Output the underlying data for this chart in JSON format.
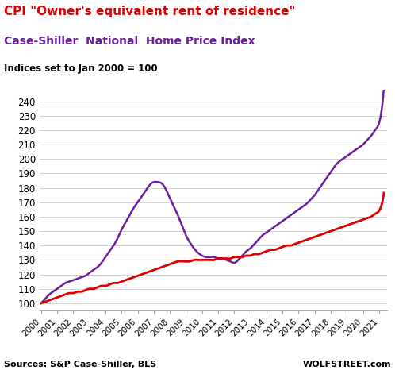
{
  "title_line1": "CPI \"Owner's equivalent rent of residence\"",
  "title_line2": "Case-Shiller  National  Home Price Index",
  "subtitle": "Indices set to Jan 2000 = 100",
  "source_left": "Sources: S&P Case-Shiller, BLS",
  "source_right": "WOLFSTREET.com",
  "ylim": [
    95,
    248
  ],
  "yticks": [
    100,
    110,
    120,
    130,
    140,
    150,
    160,
    170,
    180,
    190,
    200,
    210,
    220,
    230,
    240
  ],
  "cpi_color": "#dd0000",
  "cs_color": "#6b1fa0",
  "title1_color": "#dd0000",
  "title2_color": "#6b1fa0",
  "subtitle_color": "#000000",
  "background_color": "#ffffff",
  "cs_x": [
    2000.0,
    2000.25,
    2000.5,
    2000.75,
    2001.0,
    2001.25,
    2001.5,
    2001.75,
    2002.0,
    2002.25,
    2002.5,
    2002.75,
    2003.0,
    2003.25,
    2003.5,
    2003.75,
    2004.0,
    2004.25,
    2004.5,
    2004.75,
    2005.0,
    2005.25,
    2005.5,
    2005.75,
    2006.0,
    2006.25,
    2006.5,
    2006.75,
    2007.0,
    2007.25,
    2007.5,
    2007.75,
    2008.0,
    2008.25,
    2008.5,
    2008.75,
    2009.0,
    2009.25,
    2009.5,
    2009.75,
    2010.0,
    2010.25,
    2010.5,
    2010.75,
    2011.0,
    2011.25,
    2011.5,
    2011.75,
    2012.0,
    2012.25,
    2012.5,
    2012.75,
    2013.0,
    2013.25,
    2013.5,
    2013.75,
    2014.0,
    2014.25,
    2014.5,
    2014.75,
    2015.0,
    2015.25,
    2015.5,
    2015.75,
    2016.0,
    2016.25,
    2016.5,
    2016.75,
    2017.0,
    2017.25,
    2017.5,
    2017.75,
    2018.0,
    2018.25,
    2018.5,
    2018.75,
    2019.0,
    2019.25,
    2019.5,
    2019.75,
    2020.0,
    2020.25,
    2020.5,
    2020.75,
    2021.0,
    2021.25
  ],
  "cs_y": [
    100,
    103,
    106,
    108,
    110,
    112,
    114,
    115,
    116,
    117,
    118,
    119,
    121,
    123,
    125,
    128,
    132,
    136,
    140,
    145,
    151,
    156,
    161,
    166,
    170,
    174,
    178,
    182,
    184,
    184,
    183,
    179,
    173,
    167,
    161,
    154,
    147,
    142,
    138,
    135,
    133,
    132,
    132,
    132,
    131,
    131,
    130,
    129,
    128,
    130,
    133,
    136,
    138,
    141,
    144,
    147,
    149,
    151,
    153,
    155,
    157,
    159,
    161,
    163,
    165,
    167,
    169,
    172,
    175,
    179,
    183,
    187,
    191,
    195,
    198,
    200,
    202,
    204,
    206,
    208,
    210,
    213,
    216,
    220,
    225,
    243
  ],
  "cpi_x": [
    2000.0,
    2000.25,
    2000.5,
    2000.75,
    2001.0,
    2001.25,
    2001.5,
    2001.75,
    2002.0,
    2002.25,
    2002.5,
    2002.75,
    2003.0,
    2003.25,
    2003.5,
    2003.75,
    2004.0,
    2004.25,
    2004.5,
    2004.75,
    2005.0,
    2005.25,
    2005.5,
    2005.75,
    2006.0,
    2006.25,
    2006.5,
    2006.75,
    2007.0,
    2007.25,
    2007.5,
    2007.75,
    2008.0,
    2008.25,
    2008.5,
    2008.75,
    2009.0,
    2009.25,
    2009.5,
    2009.75,
    2010.0,
    2010.25,
    2010.5,
    2010.75,
    2011.0,
    2011.25,
    2011.5,
    2011.75,
    2012.0,
    2012.25,
    2012.5,
    2012.75,
    2013.0,
    2013.25,
    2013.5,
    2013.75,
    2014.0,
    2014.25,
    2014.5,
    2014.75,
    2015.0,
    2015.25,
    2015.5,
    2015.75,
    2016.0,
    2016.25,
    2016.5,
    2016.75,
    2017.0,
    2017.25,
    2017.5,
    2017.75,
    2018.0,
    2018.25,
    2018.5,
    2018.75,
    2019.0,
    2019.25,
    2019.5,
    2019.75,
    2020.0,
    2020.25,
    2020.5,
    2020.75,
    2021.0,
    2021.25
  ],
  "cpi_y": [
    100,
    101,
    102,
    103,
    104,
    105,
    106,
    107,
    107,
    108,
    108,
    109,
    110,
    110,
    111,
    112,
    112,
    113,
    114,
    114,
    115,
    116,
    117,
    118,
    119,
    120,
    121,
    122,
    123,
    124,
    125,
    126,
    127,
    128,
    129,
    129,
    129,
    129,
    130,
    130,
    130,
    130,
    130,
    130,
    131,
    131,
    131,
    131,
    132,
    132,
    132,
    133,
    133,
    134,
    134,
    135,
    136,
    137,
    137,
    138,
    139,
    140,
    140,
    141,
    142,
    143,
    144,
    145,
    146,
    147,
    148,
    149,
    150,
    151,
    152,
    153,
    154,
    155,
    156,
    157,
    158,
    159,
    160,
    162,
    164,
    173
  ],
  "xtick_years": [
    2000,
    2001,
    2002,
    2003,
    2004,
    2005,
    2006,
    2007,
    2008,
    2009,
    2010,
    2011,
    2012,
    2013,
    2014,
    2015,
    2016,
    2017,
    2018,
    2019,
    2020,
    2021
  ]
}
